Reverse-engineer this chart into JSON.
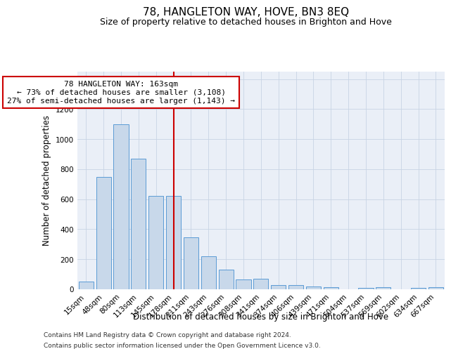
{
  "title": "78, HANGLETON WAY, HOVE, BN3 8EQ",
  "subtitle": "Size of property relative to detached houses in Brighton and Hove",
  "xlabel": "Distribution of detached houses by size in Brighton and Hove",
  "ylabel": "Number of detached properties",
  "bar_labels": [
    "15sqm",
    "48sqm",
    "80sqm",
    "113sqm",
    "145sqm",
    "178sqm",
    "211sqm",
    "243sqm",
    "276sqm",
    "308sqm",
    "341sqm",
    "374sqm",
    "406sqm",
    "439sqm",
    "471sqm",
    "504sqm",
    "537sqm",
    "569sqm",
    "602sqm",
    "634sqm",
    "667sqm"
  ],
  "bar_values": [
    50,
    750,
    1100,
    870,
    620,
    620,
    345,
    220,
    130,
    65,
    68,
    28,
    27,
    18,
    15,
    0,
    10,
    12,
    0,
    10,
    12
  ],
  "bar_color": "#c8d8ea",
  "bar_edge_color": "#5b9bd5",
  "vline_x": 5.0,
  "vline_color": "#cc0000",
  "annotation_text": "78 HANGLETON WAY: 163sqm\n← 73% of detached houses are smaller (3,108)\n27% of semi-detached houses are larger (1,143) →",
  "annotation_box_color": "white",
  "annotation_box_edge_color": "#cc0000",
  "ylim": [
    0,
    1450
  ],
  "yticks": [
    0,
    200,
    400,
    600,
    800,
    1000,
    1200,
    1400
  ],
  "grid_color": "#c8d4e4",
  "bg_color": "#eaeff7",
  "footer_line1": "Contains HM Land Registry data © Crown copyright and database right 2024.",
  "footer_line2": "Contains public sector information licensed under the Open Government Licence v3.0.",
  "title_fontsize": 11,
  "subtitle_fontsize": 9,
  "axis_label_fontsize": 8.5,
  "tick_fontsize": 7.5,
  "annotation_fontsize": 8,
  "footer_fontsize": 6.5
}
